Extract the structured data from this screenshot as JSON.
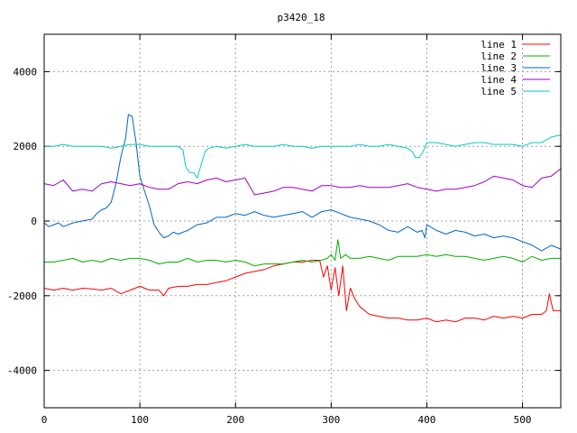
{
  "chart_data": {
    "type": "line",
    "title": "p3420_18",
    "xlabel": "",
    "ylabel": "",
    "xlim": [
      0,
      540
    ],
    "ylim": [
      -5000,
      5000
    ],
    "xticks": [
      0,
      100,
      200,
      300,
      400,
      500
    ],
    "yticks": [
      -4000,
      -2000,
      0,
      2000,
      4000
    ],
    "grid": true,
    "legend_position": "top-right",
    "series": [
      {
        "name": "line 1",
        "color": "#ff0000",
        "x": [
          0,
          10,
          20,
          30,
          40,
          50,
          60,
          70,
          80,
          90,
          100,
          110,
          120,
          125,
          130,
          140,
          150,
          160,
          170,
          180,
          190,
          200,
          210,
          220,
          230,
          240,
          250,
          260,
          270,
          280,
          288,
          292,
          296,
          300,
          304,
          308,
          312,
          316,
          320,
          325,
          330,
          340,
          350,
          360,
          370,
          380,
          390,
          400,
          410,
          420,
          430,
          440,
          450,
          460,
          470,
          480,
          490,
          500,
          510,
          520,
          525,
          528,
          532,
          540
        ],
        "values": [
          -1800,
          -1850,
          -1800,
          -1850,
          -1800,
          -1820,
          -1850,
          -1800,
          -1950,
          -1850,
          -1750,
          -1850,
          -1850,
          -2000,
          -1800,
          -1750,
          -1750,
          -1700,
          -1700,
          -1650,
          -1600,
          -1500,
          -1400,
          -1350,
          -1300,
          -1200,
          -1150,
          -1100,
          -1100,
          -1050,
          -1050,
          -1500,
          -1200,
          -1850,
          -1250,
          -2000,
          -1200,
          -2400,
          -1800,
          -2100,
          -2300,
          -2500,
          -2550,
          -2600,
          -2600,
          -2650,
          -2650,
          -2600,
          -2700,
          -2650,
          -2700,
          -2600,
          -2600,
          -2650,
          -2550,
          -2600,
          -2550,
          -2600,
          -2500,
          -2500,
          -2400,
          -1950,
          -2400,
          -2400
        ]
      },
      {
        "name": "line 2",
        "color": "#00b000",
        "x": [
          0,
          10,
          20,
          30,
          40,
          50,
          60,
          70,
          80,
          90,
          100,
          110,
          120,
          130,
          140,
          150,
          160,
          170,
          180,
          190,
          200,
          210,
          220,
          230,
          240,
          250,
          260,
          270,
          280,
          290,
          296,
          300,
          304,
          307,
          310,
          315,
          320,
          330,
          340,
          350,
          360,
          370,
          380,
          390,
          400,
          410,
          420,
          430,
          440,
          450,
          460,
          470,
          480,
          490,
          500,
          510,
          520,
          530,
          540
        ],
        "values": [
          -1100,
          -1100,
          -1050,
          -1000,
          -1100,
          -1050,
          -1100,
          -1000,
          -1050,
          -1000,
          -1000,
          -1050,
          -1150,
          -1100,
          -1100,
          -1000,
          -1100,
          -1050,
          -1050,
          -1100,
          -1050,
          -1100,
          -1200,
          -1150,
          -1150,
          -1150,
          -1100,
          -1050,
          -1100,
          -1050,
          -1000,
          -900,
          -1050,
          -500,
          -1000,
          -900,
          -1000,
          -1000,
          -950,
          -1000,
          -1050,
          -950,
          -950,
          -950,
          -900,
          -950,
          -900,
          -950,
          -950,
          -1000,
          -1050,
          -1000,
          -950,
          -1000,
          -1100,
          -950,
          -1050,
          -1000,
          -1000
        ]
      },
      {
        "name": "line 3",
        "color": "#0066cc",
        "x": [
          0,
          5,
          10,
          15,
          20,
          30,
          40,
          50,
          55,
          60,
          65,
          70,
          75,
          80,
          85,
          88,
          92,
          96,
          100,
          105,
          110,
          115,
          120,
          125,
          130,
          135,
          140,
          150,
          160,
          170,
          180,
          190,
          200,
          210,
          220,
          230,
          240,
          250,
          260,
          270,
          280,
          290,
          300,
          310,
          320,
          330,
          340,
          350,
          360,
          370,
          380,
          390,
          395,
          398,
          400,
          410,
          420,
          430,
          440,
          450,
          460,
          470,
          480,
          490,
          500,
          510,
          520,
          530,
          540
        ],
        "values": [
          -50,
          -150,
          -100,
          -50,
          -150,
          -50,
          0,
          50,
          200,
          300,
          350,
          500,
          1000,
          1700,
          2200,
          2850,
          2800,
          2100,
          1200,
          800,
          400,
          -100,
          -300,
          -450,
          -400,
          -300,
          -350,
          -250,
          -100,
          -50,
          100,
          100,
          200,
          150,
          250,
          150,
          100,
          150,
          200,
          250,
          100,
          250,
          300,
          200,
          100,
          50,
          0,
          -100,
          -250,
          -300,
          -150,
          -300,
          -250,
          -450,
          -100,
          -250,
          -350,
          -250,
          -300,
          -400,
          -350,
          -450,
          -400,
          -450,
          -550,
          -650,
          -800,
          -650,
          -750
        ]
      },
      {
        "name": "line 4",
        "color": "#a000c8",
        "x": [
          0,
          10,
          20,
          30,
          40,
          50,
          60,
          70,
          80,
          90,
          100,
          110,
          120,
          130,
          140,
          150,
          160,
          170,
          180,
          190,
          200,
          210,
          220,
          230,
          240,
          250,
          260,
          270,
          280,
          290,
          300,
          310,
          320,
          330,
          340,
          350,
          360,
          370,
          380,
          390,
          400,
          410,
          420,
          430,
          440,
          450,
          460,
          470,
          480,
          490,
          500,
          510,
          520,
          530,
          540
        ],
        "values": [
          1000,
          950,
          1100,
          800,
          850,
          800,
          1000,
          1050,
          1000,
          950,
          1000,
          900,
          850,
          850,
          1000,
          1050,
          1000,
          1100,
          1150,
          1050,
          1100,
          1150,
          700,
          750,
          800,
          900,
          900,
          850,
          800,
          950,
          950,
          900,
          900,
          950,
          900,
          900,
          900,
          950,
          1000,
          900,
          850,
          800,
          850,
          850,
          900,
          950,
          1050,
          1200,
          1150,
          1100,
          950,
          900,
          1150,
          1200,
          1400
        ]
      },
      {
        "name": "line 5",
        "color": "#00cccc",
        "x": [
          0,
          10,
          20,
          30,
          40,
          50,
          60,
          70,
          80,
          90,
          100,
          110,
          120,
          130,
          140,
          145,
          148,
          152,
          156,
          160,
          164,
          168,
          172,
          180,
          190,
          200,
          210,
          220,
          230,
          240,
          250,
          260,
          270,
          280,
          290,
          300,
          310,
          320,
          330,
          340,
          350,
          360,
          370,
          380,
          385,
          388,
          392,
          396,
          400,
          410,
          420,
          430,
          440,
          450,
          460,
          470,
          480,
          490,
          500,
          510,
          520,
          530,
          540
        ],
        "values": [
          2000,
          2000,
          2050,
          2000,
          2000,
          2000,
          2000,
          1950,
          2000,
          2050,
          2050,
          2000,
          2000,
          2000,
          2000,
          1900,
          1450,
          1300,
          1300,
          1150,
          1500,
          1850,
          1950,
          2000,
          1950,
          2000,
          2050,
          2000,
          2000,
          2000,
          2050,
          2000,
          2000,
          1950,
          2000,
          2000,
          2000,
          2000,
          2050,
          2000,
          2000,
          2050,
          2000,
          1950,
          1850,
          1700,
          1700,
          1850,
          2100,
          2100,
          2050,
          2000,
          2050,
          2100,
          2100,
          2050,
          2050,
          2050,
          2000,
          2100,
          2100,
          2250,
          2300
        ]
      }
    ]
  }
}
